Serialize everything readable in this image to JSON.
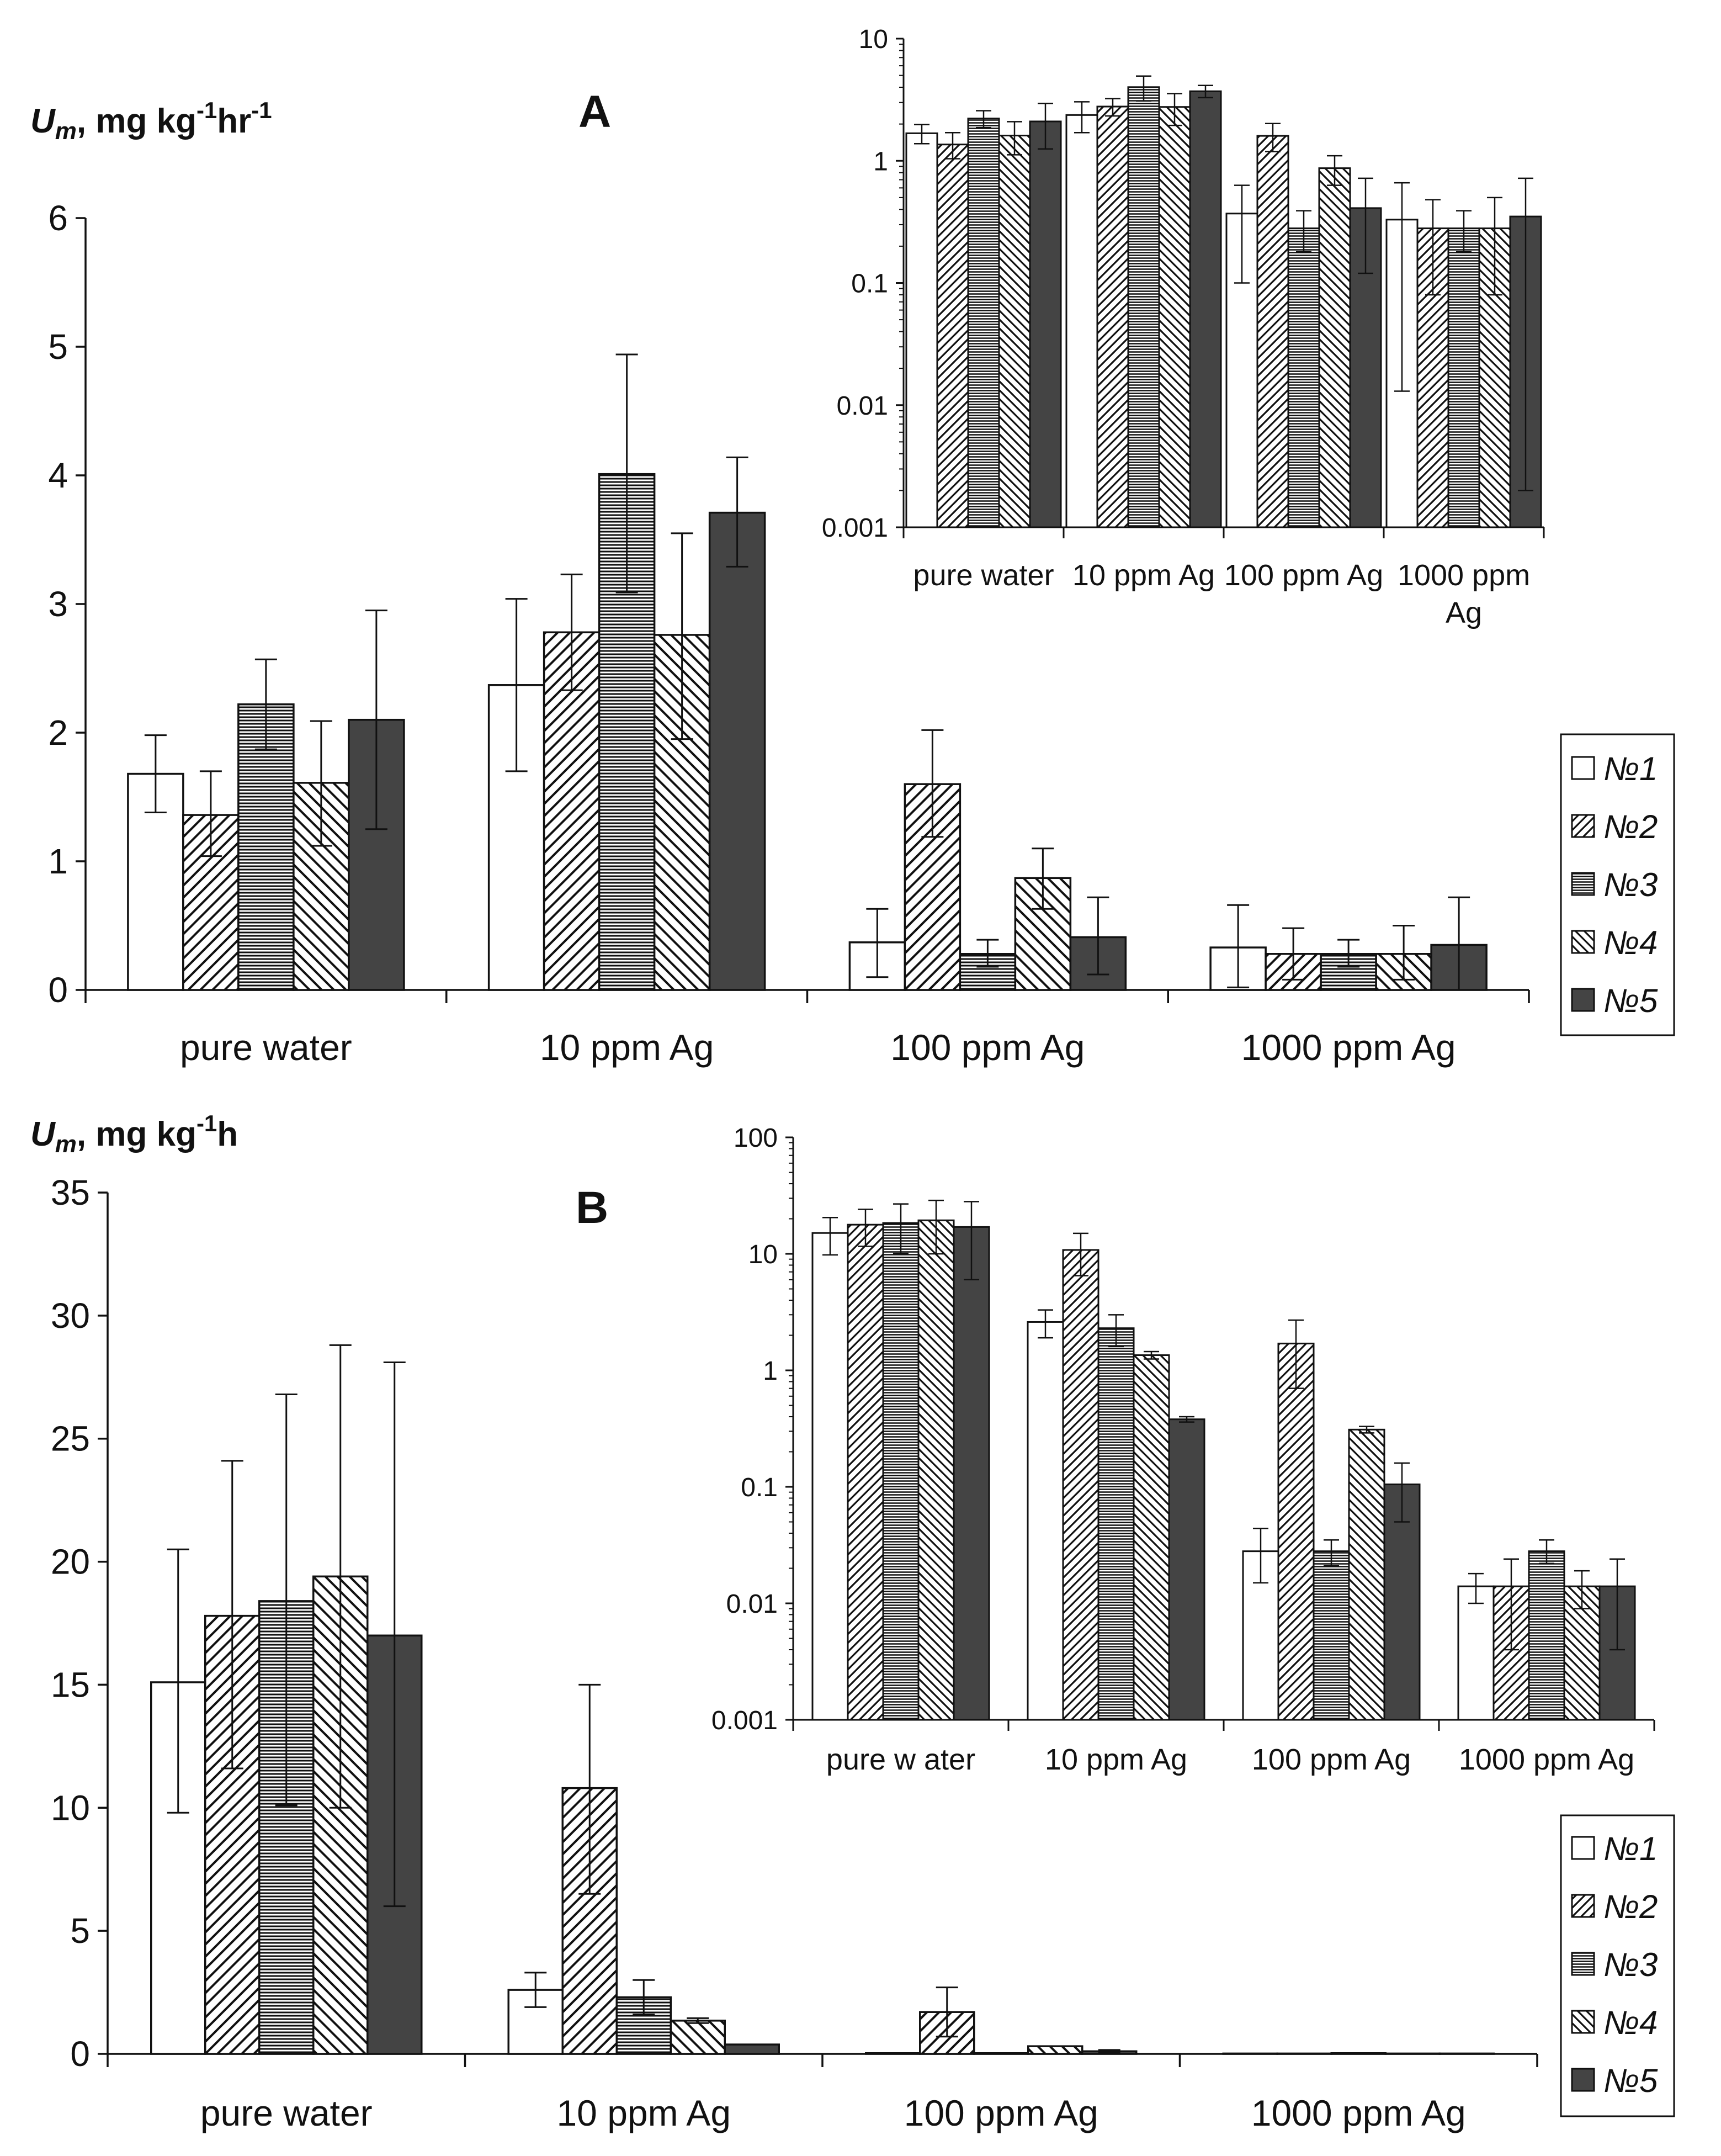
{
  "figure": {
    "panels": [
      {
        "id": "A",
        "letter": "A",
        "ylabel": "U m , mg kg-1hr-1",
        "ylabel_parts": {
          "symbol": "U",
          "sub": "m",
          "text1": ", mg kg",
          "sup1": "-1",
          "text2": "hr",
          "sup2": "-1"
        }
      },
      {
        "id": "B",
        "letter": "B",
        "ylabel": "U m , mg kg-1h",
        "ylabel_parts": {
          "symbol": "U",
          "sub": "m",
          "text1": ", mg kg",
          "sup1": "-1",
          "text2": "h",
          "sup2": ""
        }
      }
    ],
    "legend": [
      "№1",
      "№2",
      "№3",
      "№4",
      "№5"
    ]
  },
  "chart_data": [
    {
      "id": "A-main",
      "type": "bar",
      "categories": [
        "pure water",
        "10 ppm Ag",
        "100 ppm Ag",
        "1000 ppm Ag"
      ],
      "ylim": [
        0,
        6
      ],
      "yticks": [
        0,
        1,
        2,
        3,
        4,
        5,
        6
      ],
      "ylabel": "U m , mg kg-1hr-1",
      "xlabel": "",
      "scale": "linear",
      "series": [
        {
          "name": "№1",
          "values": [
            1.68,
            2.37,
            0.37,
            0.33
          ],
          "err_low": [
            1.38,
            1.7,
            0.1,
            0.02
          ],
          "err_high": [
            1.98,
            3.04,
            0.63,
            0.66
          ]
        },
        {
          "name": "№2",
          "values": [
            1.36,
            2.78,
            1.6,
            0.28
          ],
          "err_low": [
            1.04,
            2.33,
            1.19,
            0.08
          ],
          "err_high": [
            1.7,
            3.23,
            2.02,
            0.48
          ]
        },
        {
          "name": "№3",
          "values": [
            2.22,
            4.01,
            0.28,
            0.28
          ],
          "err_low": [
            1.87,
            3.09,
            0.18,
            0.18
          ],
          "err_high": [
            2.57,
            4.94,
            0.39,
            0.39
          ]
        },
        {
          "name": "№4",
          "values": [
            1.61,
            2.76,
            0.87,
            0.28
          ],
          "err_low": [
            1.12,
            1.95,
            0.63,
            0.08
          ],
          "err_high": [
            2.09,
            3.55,
            1.1,
            0.5
          ]
        },
        {
          "name": "№5",
          "values": [
            2.1,
            3.71,
            0.41,
            0.35
          ],
          "err_low": [
            1.25,
            3.29,
            0.12,
            0.0
          ],
          "err_high": [
            2.95,
            4.14,
            0.72,
            0.72
          ]
        }
      ]
    },
    {
      "id": "A-inset",
      "type": "bar",
      "scale": "log",
      "categories": [
        "pure water",
        "10 ppm Ag",
        "100 ppm Ag",
        "1000 ppm Ag"
      ],
      "ylim": [
        0.001,
        10
      ],
      "yticks": [
        "0.001",
        "0.01",
        "0.1",
        "1",
        "10"
      ],
      "series": [
        {
          "name": "№1",
          "values": [
            1.68,
            2.37,
            0.37,
            0.33
          ],
          "err_low": [
            1.38,
            1.7,
            0.1,
            0.013
          ],
          "err_high": [
            1.98,
            3.04,
            0.63,
            0.66
          ]
        },
        {
          "name": "№2",
          "values": [
            1.36,
            2.78,
            1.6,
            0.28
          ],
          "err_low": [
            1.04,
            2.33,
            1.19,
            0.08
          ],
          "err_high": [
            1.7,
            3.23,
            2.02,
            0.48
          ]
        },
        {
          "name": "№3",
          "values": [
            2.22,
            4.01,
            0.28,
            0.28
          ],
          "err_low": [
            1.87,
            3.09,
            0.18,
            0.18
          ],
          "err_high": [
            2.57,
            4.94,
            0.39,
            0.39
          ]
        },
        {
          "name": "№4",
          "values": [
            1.61,
            2.76,
            0.87,
            0.28
          ],
          "err_low": [
            1.12,
            1.95,
            0.63,
            0.08
          ],
          "err_high": [
            2.09,
            3.55,
            1.1,
            0.5
          ]
        },
        {
          "name": "№5",
          "values": [
            2.1,
            3.71,
            0.41,
            0.35
          ],
          "err_low": [
            1.25,
            3.29,
            0.12,
            0.002
          ],
          "err_high": [
            2.95,
            4.14,
            0.72,
            0.72
          ]
        }
      ]
    },
    {
      "id": "B-main",
      "type": "bar",
      "categories": [
        "pure water",
        "10 ppm Ag",
        "100 ppm Ag",
        "1000 ppm Ag"
      ],
      "ylim": [
        0,
        35
      ],
      "yticks": [
        0,
        5,
        10,
        15,
        20,
        25,
        30,
        35
      ],
      "ylabel": "U m , mg kg-1h",
      "xlabel": "",
      "scale": "linear",
      "series": [
        {
          "name": "№1",
          "values": [
            15.1,
            2.6,
            0.028,
            0.014
          ],
          "err_low": [
            9.8,
            1.9,
            0.015,
            0.01
          ],
          "err_high": [
            20.5,
            3.3,
            0.044,
            0.018
          ]
        },
        {
          "name": "№2",
          "values": [
            17.8,
            10.8,
            1.7,
            0.014
          ],
          "err_low": [
            11.6,
            6.5,
            0.7,
            0.004
          ],
          "err_high": [
            24.1,
            15.0,
            2.7,
            0.024
          ]
        },
        {
          "name": "№3",
          "values": [
            18.4,
            2.3,
            0.028,
            0.028
          ],
          "err_low": [
            10.1,
            1.6,
            0.021,
            0.022
          ],
          "err_high": [
            26.8,
            3.0,
            0.035,
            0.035
          ]
        },
        {
          "name": "№4",
          "values": [
            19.4,
            1.35,
            0.31,
            0.014
          ],
          "err_low": [
            10.0,
            1.25,
            0.29,
            0.009
          ],
          "err_high": [
            28.8,
            1.45,
            0.33,
            0.019
          ]
        },
        {
          "name": "№5",
          "values": [
            17.0,
            0.38,
            0.105,
            0.014
          ],
          "err_low": [
            6.0,
            0.36,
            0.05,
            0.004
          ],
          "err_high": [
            28.1,
            0.4,
            0.16,
            0.024
          ]
        }
      ]
    },
    {
      "id": "B-inset",
      "type": "bar",
      "scale": "log",
      "categories": [
        "pure w ater",
        "10 ppm Ag",
        "100 ppm Ag",
        "1000 ppm Ag"
      ],
      "ylim": [
        0.001,
        100
      ],
      "yticks": [
        "0.001",
        "0.01",
        "0.1",
        "1",
        "10",
        "100"
      ],
      "series": [
        {
          "name": "№1",
          "values": [
            15.1,
            2.6,
            0.028,
            0.014
          ],
          "err_low": [
            9.8,
            1.9,
            0.015,
            0.01
          ],
          "err_high": [
            20.5,
            3.3,
            0.044,
            0.018
          ]
        },
        {
          "name": "№2",
          "values": [
            17.8,
            10.8,
            1.7,
            0.014
          ],
          "err_low": [
            11.6,
            6.5,
            0.7,
            0.004
          ],
          "err_high": [
            24.1,
            15.0,
            2.7,
            0.024
          ]
        },
        {
          "name": "№3",
          "values": [
            18.4,
            2.3,
            0.028,
            0.028
          ],
          "err_low": [
            10.1,
            1.6,
            0.021,
            0.022
          ],
          "err_high": [
            26.8,
            3.0,
            0.035,
            0.035
          ]
        },
        {
          "name": "№4",
          "values": [
            19.4,
            1.35,
            0.31,
            0.014
          ],
          "err_low": [
            10.0,
            1.25,
            0.29,
            0.009
          ],
          "err_high": [
            28.8,
            1.45,
            0.33,
            0.019
          ]
        },
        {
          "name": "№5",
          "values": [
            17.0,
            0.38,
            0.105,
            0.014
          ],
          "err_low": [
            6.0,
            0.36,
            0.05,
            0.004
          ],
          "err_high": [
            28.1,
            0.4,
            0.16,
            0.024
          ]
        }
      ]
    }
  ],
  "style": {
    "series_fills": [
      "white",
      "diag-right",
      "horizontal-lines",
      "diag-left",
      "dark"
    ],
    "dark_color": "#444444",
    "line_color": "#111111"
  }
}
